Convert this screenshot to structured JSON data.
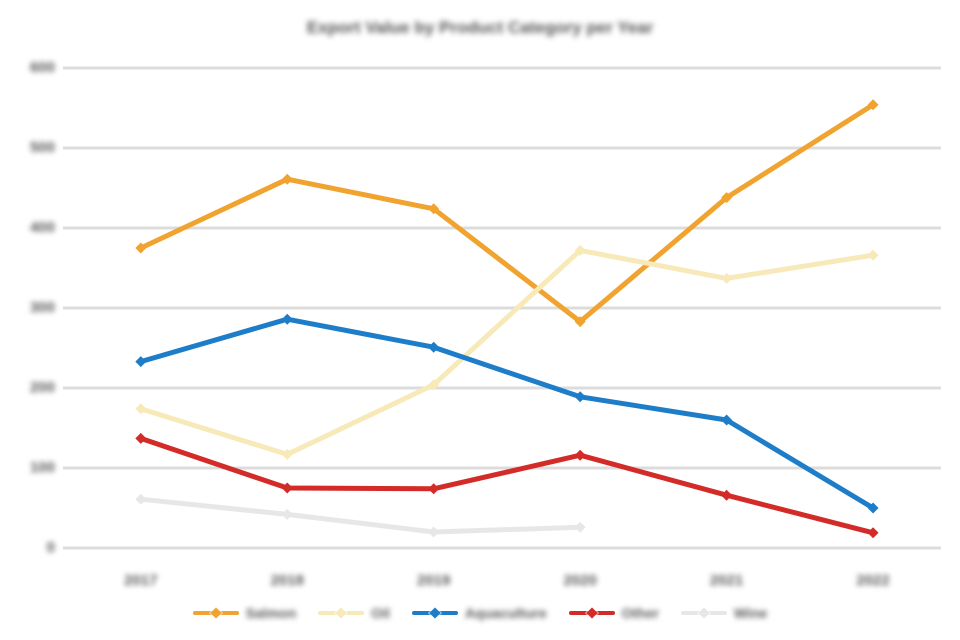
{
  "note": "All text in the source screenshot is blurred and illegible; label strings below are approximate placeholders matching the blurred block sizes.",
  "chart_data": {
    "type": "line",
    "title": "Export Value by Product Category per Year",
    "text_legibility": "blurred",
    "categories": [
      "2017",
      "2018",
      "2019",
      "2020",
      "2021",
      "2022"
    ],
    "series": [
      {
        "name": "Salmon",
        "color": "#F0A32E",
        "values": [
          375,
          461,
          424,
          283,
          438,
          554
        ]
      },
      {
        "name": "Oil",
        "color": "#F7E9B8",
        "values": [
          174,
          117,
          204,
          372,
          337,
          366
        ]
      },
      {
        "name": "Aquaculture",
        "color": "#1E7DC8",
        "values": [
          233,
          286,
          251,
          189,
          160,
          50
        ]
      },
      {
        "name": "Other",
        "color": "#D32B27",
        "values": [
          137,
          75,
          74,
          116,
          66,
          19
        ]
      },
      {
        "name": "Wine",
        "color": "#E7E7E7",
        "values": [
          61,
          42,
          20,
          26,
          null,
          null
        ]
      }
    ],
    "xlabel": "",
    "ylabel": "",
    "ylim": [
      0,
      600
    ],
    "ytick_step": 100,
    "ytick_labels": [
      "0",
      "100",
      "200",
      "300",
      "400",
      "500",
      "600"
    ],
    "grid": "horizontal-only",
    "gridline_color": "#DCDCDC",
    "background": "#FFFFFF",
    "legend_position": "bottom",
    "marker_shape": "diamond"
  }
}
